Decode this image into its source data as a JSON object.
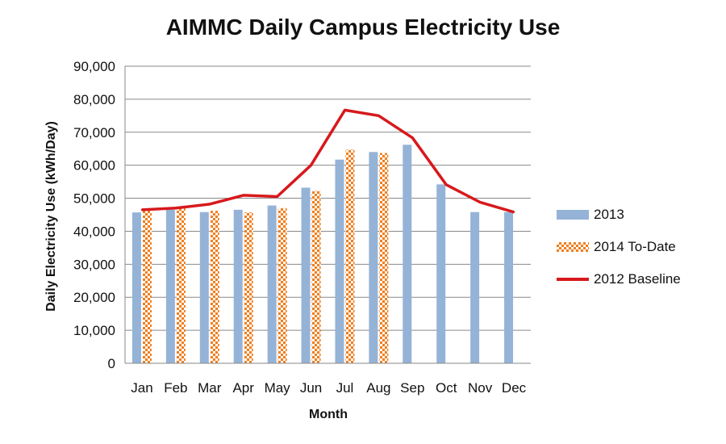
{
  "chart_data": {
    "type": "bar",
    "title": "AIMMC Daily Campus Electricity Use",
    "xlabel": "Month",
    "ylabel": "Daily Electricity Use (kWh/Day)",
    "ylim": [
      0,
      90000
    ],
    "yticks": [
      "90,000",
      "80,000",
      "70,000",
      "60,000",
      "50,000",
      "40,000",
      "30,000",
      "20,000",
      "10,000",
      "0"
    ],
    "ytick_values": [
      90000,
      80000,
      70000,
      60000,
      50000,
      40000,
      30000,
      20000,
      10000,
      0
    ],
    "grid": true,
    "legend_position": "right",
    "categories": [
      "Jan",
      "Feb",
      "Mar",
      "Apr",
      "May",
      "Jun",
      "Jul",
      "Aug",
      "Sep",
      "Oct",
      "Nov",
      "Dec"
    ],
    "series": [
      {
        "name": "2013",
        "type": "bar",
        "color": "#95B3D7",
        "values": [
          45700,
          46500,
          45800,
          46500,
          47800,
          53200,
          61700,
          64000,
          66200,
          54200,
          45800,
          45800
        ]
      },
      {
        "name": "2014 To-Date",
        "type": "bar",
        "color": "#F07E1E",
        "pattern": "checker",
        "values": [
          46200,
          47200,
          46200,
          45700,
          47000,
          52200,
          64700,
          63700,
          null,
          null,
          null,
          null
        ]
      },
      {
        "name": "2012 Baseline",
        "type": "line",
        "color": "#D7191C",
        "values": [
          46500,
          47000,
          48200,
          50900,
          50500,
          60000,
          76700,
          75000,
          68300,
          54100,
          48800,
          45800
        ]
      }
    ]
  }
}
